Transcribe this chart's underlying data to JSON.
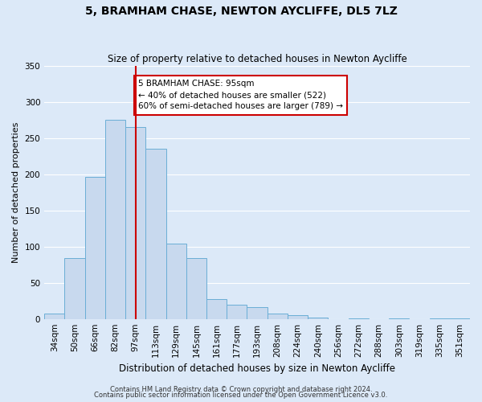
{
  "title": "5, BRAMHAM CHASE, NEWTON AYCLIFFE, DL5 7LZ",
  "subtitle": "Size of property relative to detached houses in Newton Aycliffe",
  "xlabel": "Distribution of detached houses by size in Newton Aycliffe",
  "ylabel": "Number of detached properties",
  "bin_labels": [
    "34sqm",
    "50sqm",
    "66sqm",
    "82sqm",
    "97sqm",
    "113sqm",
    "129sqm",
    "145sqm",
    "161sqm",
    "177sqm",
    "193sqm",
    "208sqm",
    "224sqm",
    "240sqm",
    "256sqm",
    "272sqm",
    "288sqm",
    "303sqm",
    "319sqm",
    "335sqm",
    "351sqm"
  ],
  "bar_heights": [
    7,
    84,
    196,
    275,
    265,
    236,
    104,
    84,
    28,
    20,
    16,
    7,
    5,
    2,
    0,
    1,
    0,
    1,
    0,
    1,
    1
  ],
  "bar_color": "#c8d9ee",
  "bar_edge_color": "#6aaed6",
  "red_line_index": 4,
  "annotation_line1": "5 BRAMHAM CHASE: 95sqm",
  "annotation_line2": "← 40% of detached houses are smaller (522)",
  "annotation_line3": "60% of semi-detached houses are larger (789) →",
  "annotation_box_facecolor": "#ffffff",
  "annotation_box_edgecolor": "#cc0000",
  "red_line_color": "#cc0000",
  "ylim": [
    0,
    350
  ],
  "yticks": [
    0,
    50,
    100,
    150,
    200,
    250,
    300,
    350
  ],
  "footer1": "Contains HM Land Registry data © Crown copyright and database right 2024.",
  "footer2": "Contains public sector information licensed under the Open Government Licence v3.0.",
  "bg_color": "#dce9f8",
  "plot_bg_color": "#dce9f8",
  "grid_color": "#ffffff",
  "title_fontsize": 10,
  "subtitle_fontsize": 8.5,
  "ylabel_fontsize": 8,
  "xlabel_fontsize": 8.5,
  "tick_fontsize": 7.5,
  "footer_fontsize": 6
}
